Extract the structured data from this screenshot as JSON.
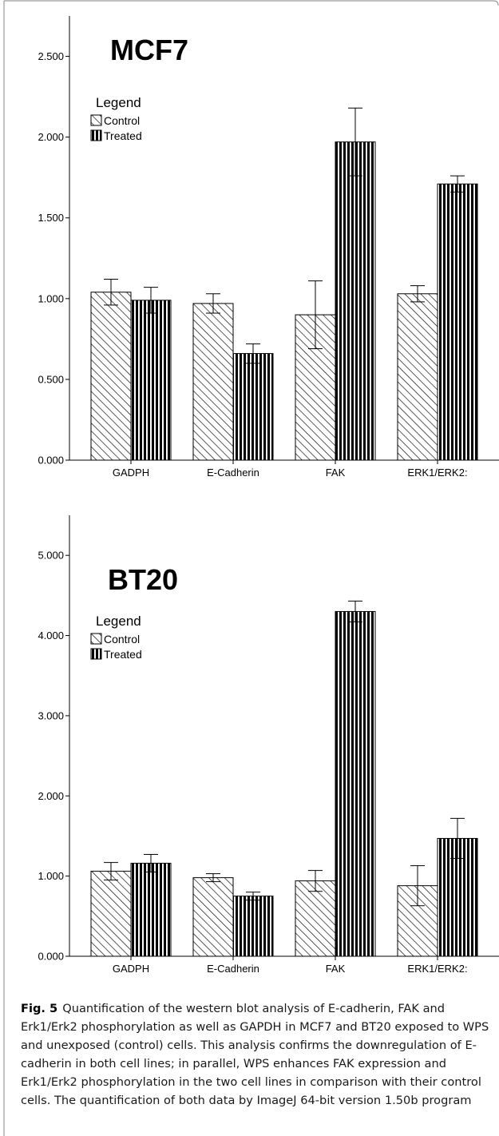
{
  "figure": {
    "label": "Fig. 5",
    "caption": "Quantification of the western blot analysis of E-cadherin, FAK and Erk1/Erk2 phosphorylation as well as GAPDH in MCF7 and BT20 exposed to WPS and unexposed (control) cells. This analysis confirms the downregulation of E-cadherin in both cell lines; in parallel, WPS enhances FAK expression and Erk1/Erk2 phosphorylation in the two cell lines in comparison with their control cells. The quantification of both data by ImageJ 64-bit version 1.50b program"
  },
  "chart_data": [
    {
      "type": "bar",
      "title": "MCF7",
      "categories": [
        "GADPH",
        "E-Cadherin",
        "FAK",
        "ERK1/ERK2:"
      ],
      "series": [
        {
          "name": "Control",
          "values": [
            1.04,
            0.97,
            0.9,
            1.03
          ],
          "error": [
            0.08,
            0.06,
            0.21,
            0.05
          ]
        },
        {
          "name": "Treated",
          "values": [
            0.99,
            0.66,
            1.97,
            1.71
          ],
          "error": [
            0.08,
            0.06,
            0.21,
            0.05
          ]
        }
      ],
      "legend_title": "Legend",
      "legend_position": "top-left",
      "ylim": [
        0,
        2.75
      ],
      "yticks": [
        0,
        0.5,
        1.0,
        1.5,
        2.0,
        2.5
      ],
      "ytick_labels": [
        "0.000",
        "0.500",
        "1.000",
        "1.500",
        "2.000",
        "2.500"
      ],
      "grid": false,
      "xlabel": "",
      "ylabel": ""
    },
    {
      "type": "bar",
      "title": "BT20",
      "categories": [
        "GADPH",
        "E-Cadherin",
        "FAK",
        "ERK1/ERK2:"
      ],
      "series": [
        {
          "name": "Control",
          "values": [
            1.06,
            0.98,
            0.94,
            0.88
          ],
          "error": [
            0.11,
            0.05,
            0.13,
            0.25
          ]
        },
        {
          "name": "Treated",
          "values": [
            1.16,
            0.75,
            4.3,
            1.47
          ],
          "error": [
            0.11,
            0.05,
            0.13,
            0.25
          ]
        }
      ],
      "legend_title": "Legend",
      "legend_position": "top-left",
      "ylim": [
        0,
        5.5
      ],
      "yticks": [
        0,
        1,
        2,
        3,
        4,
        5
      ],
      "ytick_labels": [
        "0.000",
        "1.000",
        "2.000",
        "3.000",
        "4.000",
        "5.000"
      ],
      "grid": false,
      "xlabel": "",
      "ylabel": ""
    }
  ]
}
